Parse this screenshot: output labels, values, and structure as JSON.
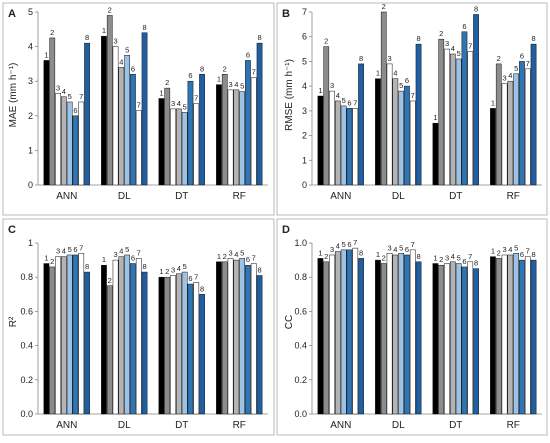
{
  "figure": {
    "panels": [
      {
        "letter": "A",
        "ylabel": "MAE (mm h⁻¹)"
      },
      {
        "letter": "B",
        "ylabel": "RMSE (mm h⁻¹)"
      },
      {
        "letter": "C",
        "ylabel": "R²"
      },
      {
        "letter": "D",
        "ylabel": "CC"
      }
    ]
  },
  "chart_data": [
    {
      "type": "bar",
      "panel": "A",
      "ylabel": "MAE (mm h⁻¹)",
      "ylim": [
        0,
        5
      ],
      "yticks": [
        0,
        1,
        2,
        3,
        4,
        5
      ],
      "categories": [
        "ANN",
        "DL",
        "DT",
        "RF"
      ],
      "series": [
        {
          "name": "1",
          "color": "#000000",
          "values": [
            3.6,
            4.3,
            2.5,
            2.9
          ]
        },
        {
          "name": "2",
          "color": "#8c8c8c",
          "values": [
            4.25,
            4.9,
            2.8,
            3.2
          ]
        },
        {
          "name": "3",
          "color": "#ffffff",
          "values": [
            2.65,
            4.0,
            2.2,
            2.75
          ]
        },
        {
          "name": "4",
          "color": "#b4b4b4",
          "values": [
            2.55,
            3.4,
            2.2,
            2.75
          ]
        },
        {
          "name": "5",
          "color": "#9cc3e6",
          "values": [
            2.4,
            3.75,
            2.1,
            2.7
          ]
        },
        {
          "name": "6",
          "color": "#2e75b6",
          "values": [
            2.0,
            3.2,
            3.0,
            3.6
          ]
        },
        {
          "name": "7",
          "color": "#ffffff",
          "values": [
            2.4,
            2.15,
            2.35,
            3.1
          ]
        },
        {
          "name": "8",
          "color": "#1f5fa3",
          "values": [
            4.1,
            4.4,
            3.2,
            4.1
          ]
        }
      ]
    },
    {
      "type": "bar",
      "panel": "B",
      "ylabel": "RMSE (mm h⁻¹)",
      "ylim": [
        0,
        7
      ],
      "yticks": [
        0,
        1,
        2,
        3,
        4,
        5,
        6,
        7
      ],
      "categories": [
        "ANN",
        "DL",
        "DT",
        "RF"
      ],
      "series": [
        {
          "name": "1",
          "color": "#000000",
          "values": [
            3.6,
            4.3,
            2.5,
            3.1
          ]
        },
        {
          "name": "2",
          "color": "#8c8c8c",
          "values": [
            5.6,
            7.0,
            5.9,
            4.9
          ]
        },
        {
          "name": "3",
          "color": "#ffffff",
          "values": [
            3.8,
            4.9,
            5.5,
            4.1
          ]
        },
        {
          "name": "4",
          "color": "#b4b4b4",
          "values": [
            3.4,
            4.3,
            5.3,
            4.2
          ]
        },
        {
          "name": "5",
          "color": "#9cc3e6",
          "values": [
            3.2,
            3.8,
            5.1,
            4.5
          ]
        },
        {
          "name": "6",
          "color": "#2e75b6",
          "values": [
            3.1,
            4.0,
            6.2,
            5.0
          ]
        },
        {
          "name": "7",
          "color": "#ffffff",
          "values": [
            3.1,
            3.4,
            5.4,
            4.7
          ]
        },
        {
          "name": "8",
          "color": "#1f5fa3",
          "values": [
            4.9,
            5.7,
            6.9,
            5.7
          ]
        }
      ]
    },
    {
      "type": "bar",
      "panel": "C",
      "ylabel": "R²",
      "ylim": [
        0,
        1
      ],
      "yticks": [
        0,
        0.2,
        0.4,
        0.6,
        0.8,
        1
      ],
      "ytick_labels": [
        "0.0",
        "0.2",
        "0.4",
        "0.6",
        "0.8",
        "1"
      ],
      "categories": [
        "ANN",
        "DL",
        "DT",
        "RF"
      ],
      "series": [
        {
          "name": "1",
          "color": "#000000",
          "values": [
            0.88,
            0.87,
            0.8,
            0.89
          ]
        },
        {
          "name": "2",
          "color": "#8c8c8c",
          "values": [
            0.86,
            0.75,
            0.8,
            0.89
          ]
        },
        {
          "name": "3",
          "color": "#ffffff",
          "values": [
            0.92,
            0.9,
            0.81,
            0.91
          ]
        },
        {
          "name": "4",
          "color": "#b4b4b4",
          "values": [
            0.92,
            0.92,
            0.82,
            0.9
          ]
        },
        {
          "name": "5",
          "color": "#9cc3e6",
          "values": [
            0.93,
            0.93,
            0.83,
            0.91
          ]
        },
        {
          "name": "6",
          "color": "#2e75b6",
          "values": [
            0.93,
            0.88,
            0.76,
            0.87
          ]
        },
        {
          "name": "7",
          "color": "#ffffff",
          "values": [
            0.94,
            0.91,
            0.77,
            0.88
          ]
        },
        {
          "name": "8",
          "color": "#1f5fa3",
          "values": [
            0.83,
            0.83,
            0.7,
            0.81
          ]
        }
      ]
    },
    {
      "type": "bar",
      "panel": "D",
      "ylabel": "CC",
      "ylim": [
        0,
        1
      ],
      "yticks": [
        0,
        0.2,
        0.4,
        0.6,
        0.8,
        1
      ],
      "ytick_labels": [
        "0.0",
        "0.2",
        "0.4",
        "0.6",
        "0.8",
        "1.0"
      ],
      "categories": [
        "ANN",
        "DL",
        "DT",
        "RF"
      ],
      "series": [
        {
          "name": "1",
          "color": "#000000",
          "values": [
            0.91,
            0.9,
            0.88,
            0.92
          ]
        },
        {
          "name": "2",
          "color": "#8c8c8c",
          "values": [
            0.89,
            0.88,
            0.87,
            0.91
          ]
        },
        {
          "name": "3",
          "color": "#ffffff",
          "values": [
            0.93,
            0.94,
            0.88,
            0.93
          ]
        },
        {
          "name": "4",
          "color": "#b4b4b4",
          "values": [
            0.95,
            0.93,
            0.89,
            0.93
          ]
        },
        {
          "name": "5",
          "color": "#9cc3e6",
          "values": [
            0.96,
            0.94,
            0.88,
            0.94
          ]
        },
        {
          "name": "6",
          "color": "#2e75b6",
          "values": [
            0.96,
            0.93,
            0.86,
            0.9
          ]
        },
        {
          "name": "7",
          "color": "#ffffff",
          "values": [
            0.97,
            0.96,
            0.89,
            0.92
          ]
        },
        {
          "name": "8",
          "color": "#1f5fa3",
          "values": [
            0.91,
            0.89,
            0.85,
            0.9
          ]
        }
      ]
    }
  ]
}
